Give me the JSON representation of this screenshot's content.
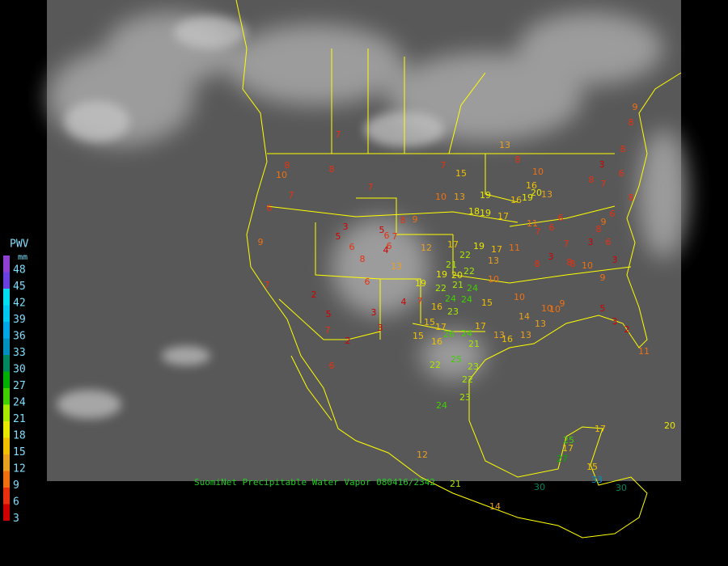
{
  "legend": {
    "title": "PWV",
    "unit": "mm",
    "levels": [
      {
        "value": 48,
        "color": "#9040d0"
      },
      {
        "value": 45,
        "color": "#6a40e0"
      },
      {
        "value": 42,
        "color": "#00e0f0"
      },
      {
        "value": 39,
        "color": "#00c8f0"
      },
      {
        "value": 36,
        "color": "#00a8e8"
      },
      {
        "value": 33,
        "color": "#0090c0"
      },
      {
        "value": 30,
        "color": "#008860"
      },
      {
        "value": 27,
        "color": "#00b000"
      },
      {
        "value": 24,
        "color": "#40d000"
      },
      {
        "value": 21,
        "color": "#a8e800"
      },
      {
        "value": 18,
        "color": "#e8e800"
      },
      {
        "value": 15,
        "color": "#f0c000"
      },
      {
        "value": 12,
        "color": "#e8a020"
      },
      {
        "value": 9,
        "color": "#f07010"
      },
      {
        "value": 6,
        "color": "#e83010"
      },
      {
        "value": 3,
        "color": "#d00000"
      }
    ]
  },
  "caption": "SuomiNet Precipitable Water Vapor 080416/2342",
  "stations": [
    7,
    8,
    10,
    7,
    6,
    9,
    7,
    8,
    7,
    7,
    15,
    10,
    13,
    19,
    18,
    19,
    17,
    8,
    9,
    5,
    3,
    5,
    6,
    7,
    6,
    4,
    6,
    8,
    13,
    12,
    17,
    19,
    17,
    11,
    22,
    21,
    22,
    19,
    20,
    19,
    22,
    21,
    24,
    24,
    24,
    15,
    16,
    23,
    2,
    5,
    3,
    4,
    7,
    6,
    7,
    2,
    3,
    15,
    17,
    15,
    16,
    26,
    24,
    17,
    21,
    25,
    23,
    22,
    22,
    23,
    24,
    6,
    12,
    14,
    10,
    10,
    8,
    3,
    8,
    10,
    9,
    10,
    10,
    9,
    5,
    3,
    11,
    2,
    8,
    7,
    6,
    9,
    8,
    8,
    3,
    8,
    6,
    9,
    8,
    3,
    6,
    3,
    6,
    6,
    7,
    11,
    7,
    8,
    8,
    10,
    16,
    19,
    16,
    13,
    20,
    13,
    13,
    13,
    16,
    13,
    13,
    14,
    17,
    17,
    25,
    27,
    15,
    30,
    30,
    33,
    20,
    21
  ]
}
